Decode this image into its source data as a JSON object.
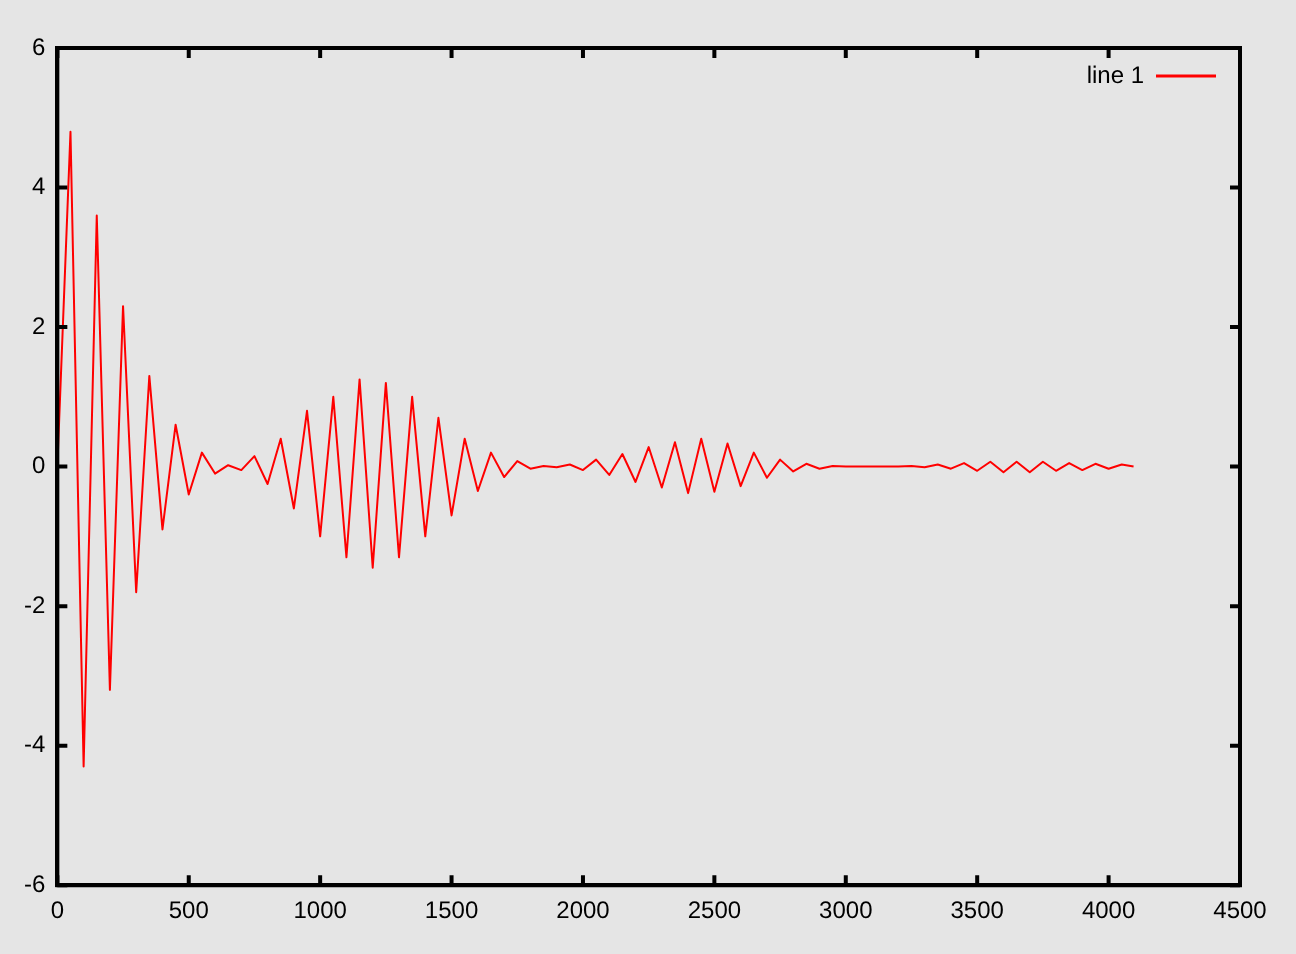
{
  "chart_data": {
    "type": "line",
    "legend": "top right",
    "grid": false,
    "marker": "none",
    "line_style": "solid",
    "xlim": [
      0,
      4500
    ],
    "xticks": [
      0,
      500,
      1000,
      1500,
      2000,
      2500,
      3000,
      3500,
      4000,
      4500
    ],
    "ylim": [
      -6,
      6
    ],
    "yticks": [
      -6,
      -4,
      -2,
      0,
      2,
      4,
      6
    ],
    "series": [
      {
        "name": "line 1",
        "color": "#ff0000",
        "x": [
          0,
          50,
          100,
          150,
          200,
          250,
          300,
          350,
          400,
          450,
          500,
          550,
          600,
          650,
          700,
          750,
          800,
          850,
          900,
          950,
          1000,
          1050,
          1100,
          1150,
          1200,
          1250,
          1300,
          1350,
          1400,
          1450,
          1500,
          1550,
          1600,
          1650,
          1700,
          1750,
          1800,
          1850,
          1900,
          1950,
          2000,
          2050,
          2100,
          2150,
          2200,
          2250,
          2300,
          2350,
          2400,
          2450,
          2500,
          2550,
          2600,
          2650,
          2700,
          2750,
          2800,
          2850,
          2900,
          2950,
          3000,
          3050,
          3100,
          3150,
          3200,
          3250,
          3300,
          3350,
          3400,
          3450,
          3500,
          3550,
          3600,
          3650,
          3700,
          3750,
          3800,
          3850,
          3900,
          3950,
          4000,
          4050,
          4095
        ],
        "values": [
          0,
          4.8,
          -4.3,
          3.6,
          -3.2,
          2.3,
          -1.8,
          1.3,
          -0.9,
          0.6,
          -0.4,
          0.2,
          -0.1,
          0.02,
          -0.05,
          0.15,
          -0.25,
          0.4,
          -0.6,
          0.8,
          -1.0,
          1.0,
          -1.3,
          1.25,
          -1.45,
          1.2,
          -1.3,
          1.0,
          -1.0,
          0.7,
          -0.7,
          0.4,
          -0.35,
          0.2,
          -0.15,
          0.08,
          -0.03,
          0.01,
          -0.01,
          0.03,
          -0.05,
          0.1,
          -0.12,
          0.18,
          -0.22,
          0.28,
          -0.3,
          0.35,
          -0.38,
          0.4,
          -0.36,
          0.33,
          -0.28,
          0.2,
          -0.16,
          0.1,
          -0.07,
          0.04,
          -0.03,
          0.01,
          0,
          0,
          0,
          0,
          0,
          0.01,
          -0.01,
          0.03,
          -0.03,
          0.05,
          -0.06,
          0.07,
          -0.08,
          0.07,
          -0.08,
          0.07,
          -0.06,
          0.05,
          -0.05,
          0.04,
          -0.03,
          0.03,
          0
        ]
      }
    ]
  }
}
